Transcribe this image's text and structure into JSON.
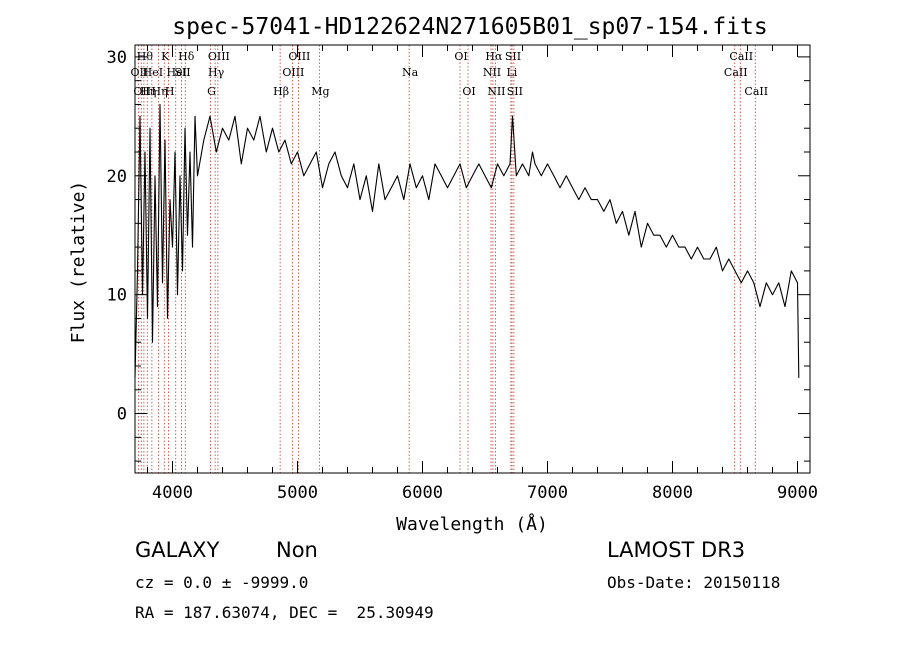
{
  "chart_data": {
    "type": "line",
    "title": "spec-57041-HD122624N271605B01_sp07-154.fits",
    "xlabel": "Wavelength (Å)",
    "ylabel": "Flux (relative)",
    "xlim": [
      3700,
      9100
    ],
    "ylim": [
      -5,
      31
    ],
    "xticks": [
      4000,
      5000,
      6000,
      7000,
      8000,
      9000
    ],
    "yticks": [
      0,
      10,
      20,
      30
    ],
    "grid": false,
    "series": [
      {
        "x": [
          3700,
          3720,
          3740,
          3760,
          3780,
          3800,
          3820,
          3840,
          3860,
          3880,
          3900,
          3920,
          3940,
          3960,
          3980,
          4000,
          4020,
          4040,
          4060,
          4080,
          4100,
          4120,
          4140,
          4160,
          4180,
          4200,
          4250,
          4300,
          4350,
          4400,
          4450,
          4500,
          4550,
          4600,
          4650,
          4700,
          4750,
          4800,
          4850,
          4900,
          4950,
          5000,
          5050,
          5100,
          5150,
          5200,
          5250,
          5300,
          5350,
          5400,
          5450,
          5500,
          5550,
          5600,
          5650,
          5700,
          5750,
          5800,
          5850,
          5900,
          5950,
          6000,
          6050,
          6100,
          6150,
          6200,
          6250,
          6300,
          6350,
          6400,
          6450,
          6500,
          6550,
          6600,
          6650,
          6700,
          6720,
          6750,
          6800,
          6850,
          6880,
          6900,
          6950,
          7000,
          7050,
          7100,
          7150,
          7200,
          7250,
          7300,
          7350,
          7400,
          7450,
          7500,
          7550,
          7600,
          7650,
          7700,
          7750,
          7800,
          7850,
          7900,
          7950,
          8000,
          8050,
          8100,
          8150,
          8200,
          8250,
          8300,
          8350,
          8400,
          8450,
          8500,
          8550,
          8600,
          8650,
          8700,
          8750,
          8800,
          8850,
          8900,
          8950,
          9000,
          9010
        ],
        "y": [
          3,
          12,
          25,
          10,
          22,
          8,
          24,
          6,
          20,
          9,
          26,
          11,
          23,
          8,
          18,
          14,
          22,
          10,
          20,
          12,
          24,
          15,
          22,
          14,
          25,
          20,
          23,
          25,
          22,
          24,
          23,
          25,
          21,
          24,
          23,
          25,
          22,
          24,
          22,
          23,
          21,
          22,
          20,
          21,
          22,
          19,
          21,
          22,
          20,
          19,
          21,
          18,
          20,
          17,
          21,
          18,
          19,
          20,
          18,
          21,
          19,
          20,
          18,
          21,
          20,
          19,
          20,
          21,
          19,
          20,
          21,
          20,
          19,
          21,
          20,
          21,
          25,
          20,
          21,
          20,
          22,
          21,
          20,
          21,
          20,
          19,
          20,
          19,
          18,
          19,
          18,
          18,
          17,
          18,
          16,
          17,
          15,
          17,
          14,
          16,
          15,
          15,
          14,
          15,
          14,
          14,
          13,
          14,
          13,
          13,
          14,
          12,
          13,
          12,
          11,
          12,
          11,
          9,
          11,
          10,
          11,
          9,
          12,
          11,
          3
        ]
      }
    ],
    "lines": [
      {
        "w": 3727,
        "labels": [
          "OII"
        ],
        "row": 1
      },
      {
        "w": 3750,
        "labels": [
          "OII"
        ],
        "row": 2
      },
      {
        "w": 3771,
        "labels": [
          "Hθ"
        ],
        "row": 0
      },
      {
        "w": 3798,
        "labels": [
          "Hη"
        ],
        "row": 2
      },
      {
        "w": 3835,
        "labels": [
          "HeI"
        ],
        "row": 1
      },
      {
        "w": 3889,
        "labels": [
          "Hη"
        ],
        "row": 2
      },
      {
        "w": 3934,
        "labels": [
          "K"
        ],
        "row": 0
      },
      {
        "w": 3969,
        "labels": [
          "H"
        ],
        "row": 2
      },
      {
        "w": 4026,
        "labels": [
          "HeI"
        ],
        "row": 1
      },
      {
        "w": 4072,
        "labels": [
          "SII"
        ],
        "row": 1
      },
      {
        "w": 4102,
        "labels": [
          "Hδ"
        ],
        "row": 0
      },
      {
        "w": 4304,
        "labels": [
          "G"
        ],
        "row": 2
      },
      {
        "w": 4341,
        "labels": [
          "Hγ"
        ],
        "row": 1
      },
      {
        "w": 4363,
        "labels": [
          "OIII"
        ],
        "row": 0
      },
      {
        "w": 4861,
        "labels": [
          "Hβ"
        ],
        "row": 2
      },
      {
        "w": 4959,
        "labels": [
          "OIII"
        ],
        "row": 1
      },
      {
        "w": 5007,
        "labels": [
          "OIII"
        ],
        "row": 0
      },
      {
        "w": 5175,
        "labels": [
          "Mg"
        ],
        "row": 2
      },
      {
        "w": 5893,
        "labels": [
          "Na"
        ],
        "row": 1
      },
      {
        "w": 6300,
        "labels": [
          "OI"
        ],
        "row": 0
      },
      {
        "w": 6364,
        "labels": [
          "OI"
        ],
        "row": 2
      },
      {
        "w": 6548,
        "labels": [
          "NII"
        ],
        "row": 1
      },
      {
        "w": 6563,
        "labels": [
          "Hα"
        ],
        "row": 0
      },
      {
        "w": 6583,
        "labels": [
          "NII"
        ],
        "row": 2
      },
      {
        "w": 6707,
        "labels": [
          "Li"
        ],
        "row": 1
      },
      {
        "w": 6716,
        "labels": [
          "SII"
        ],
        "row": 0
      },
      {
        "w": 6731,
        "labels": [
          "SII"
        ],
        "row": 2
      },
      {
        "w": 8498,
        "labels": [
          "CaII"
        ],
        "row": 1
      },
      {
        "w": 8542,
        "labels": [
          "CaII"
        ],
        "row": 0
      },
      {
        "w": 8662,
        "labels": [
          "CaII"
        ],
        "row": 2
      }
    ]
  },
  "info": {
    "object_class": "GALAXY",
    "subclass": "Non",
    "survey": "LAMOST DR3",
    "cz": "cz = 0.0 ± -9999.0",
    "obs_date": "Obs-Date: 20150118",
    "coords": "RA = 187.63074, DEC =  25.30949"
  },
  "colors": {
    "spectrum": "#000000",
    "line_marker": "#c0392b"
  }
}
